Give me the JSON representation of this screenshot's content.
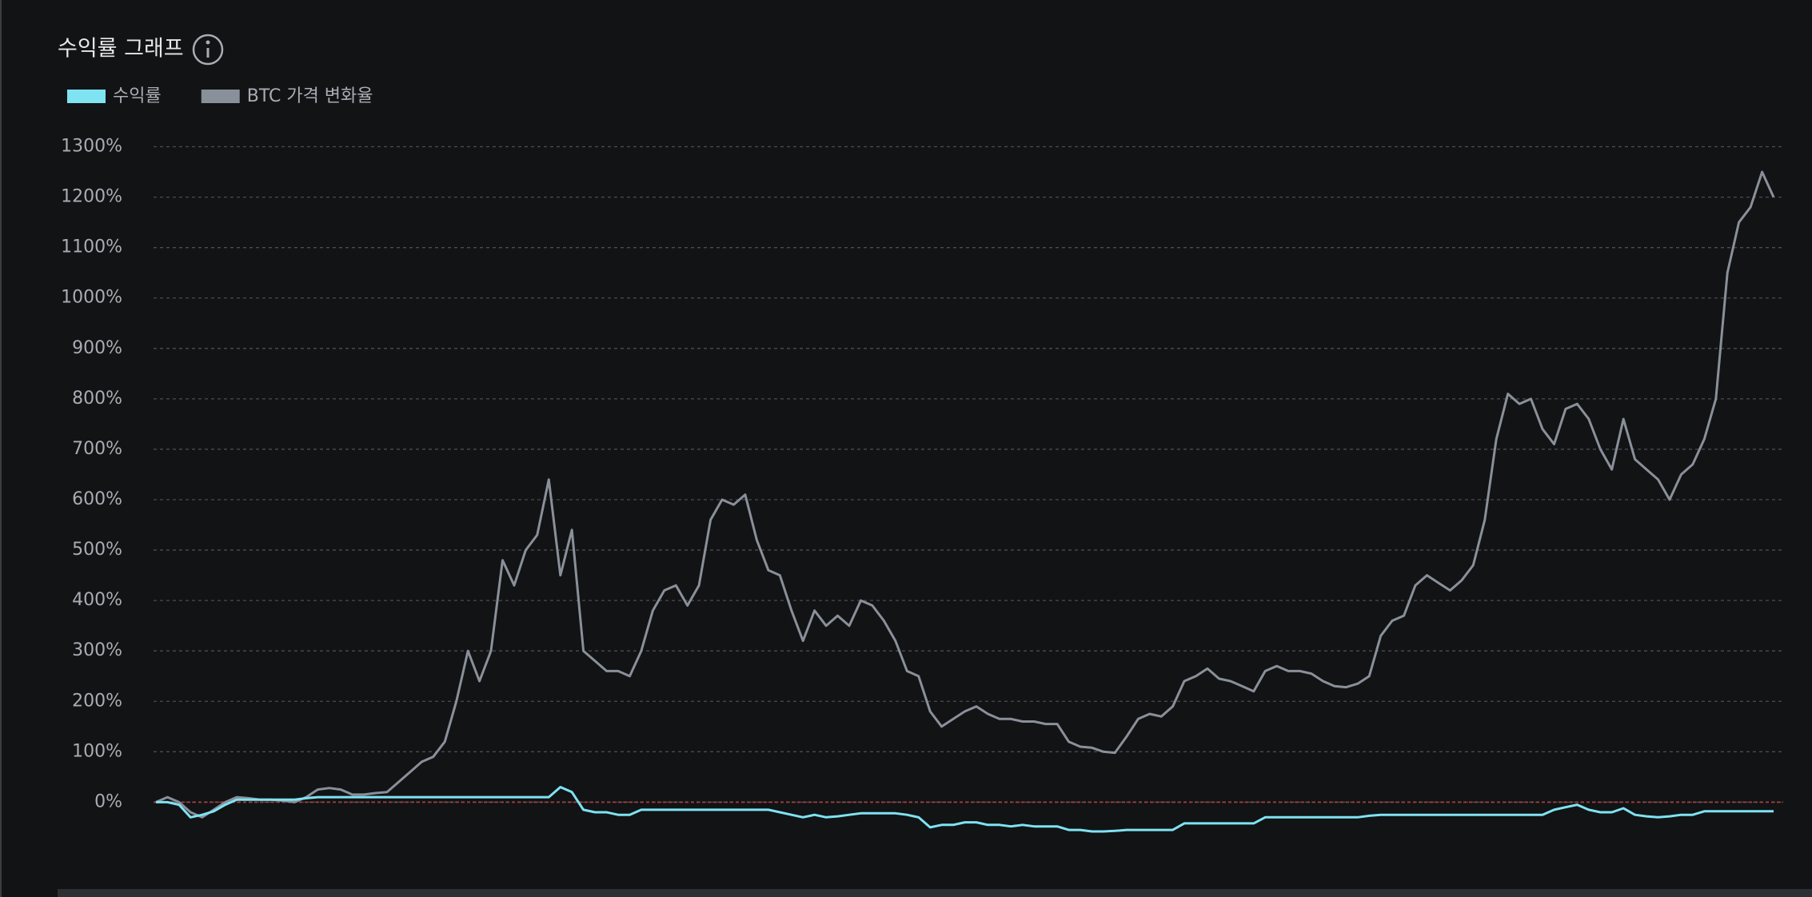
{
  "chart_data": {
    "type": "line",
    "title": "수익률 그래프",
    "ylim": [
      -150,
      1350
    ],
    "yticks": [
      {
        "value": 0,
        "label": "0%"
      },
      {
        "value": 100,
        "label": "100%"
      },
      {
        "value": 200,
        "label": "200%"
      },
      {
        "value": 300,
        "label": "300%"
      },
      {
        "value": 400,
        "label": "400%"
      },
      {
        "value": 500,
        "label": "500%"
      },
      {
        "value": 600,
        "label": "600%"
      },
      {
        "value": 700,
        "label": "700%"
      },
      {
        "value": 800,
        "label": "800%"
      },
      {
        "value": 900,
        "label": "900%"
      },
      {
        "value": 1000,
        "label": "1000%"
      },
      {
        "value": 1100,
        "label": "1100%"
      },
      {
        "value": 1200,
        "label": "1200%"
      },
      {
        "value": 1300,
        "label": "1300%"
      }
    ],
    "grid": true,
    "zero_line_color": "#9a3b3b",
    "legend": "top-left",
    "series": [
      {
        "name": "수익률",
        "color": "#7fe3f2",
        "values": [
          0,
          0,
          -5,
          -30,
          -25,
          -18,
          -5,
          5,
          5,
          5,
          5,
          5,
          5,
          8,
          10,
          10,
          10,
          10,
          10,
          10,
          10,
          10,
          10,
          10,
          10,
          10,
          10,
          10,
          10,
          10,
          10,
          10,
          10,
          10,
          10,
          30,
          20,
          -15,
          -20,
          -20,
          -25,
          -25,
          -15,
          -15,
          -15,
          -15,
          -15,
          -15,
          -15,
          -15,
          -15,
          -15,
          -15,
          -15,
          -20,
          -25,
          -30,
          -25,
          -30,
          -28,
          -25,
          -22,
          -22,
          -22,
          -22,
          -25,
          -30,
          -50,
          -45,
          -45,
          -40,
          -40,
          -45,
          -45,
          -48,
          -45,
          -48,
          -48,
          -48,
          -55,
          -55,
          -58,
          -58,
          -57,
          -55,
          -55,
          -55,
          -55,
          -55,
          -42,
          -42,
          -42,
          -42,
          -42,
          -42,
          -42,
          -30,
          -30,
          -30,
          -30,
          -30,
          -30,
          -30,
          -30,
          -30,
          -27,
          -25,
          -25,
          -25,
          -25,
          -25,
          -25,
          -25,
          -25,
          -25,
          -25,
          -25,
          -25,
          -25,
          -25,
          -25,
          -15,
          -10,
          -5,
          -15,
          -20,
          -20,
          -12,
          -25,
          -28,
          -30,
          -28,
          -25,
          -25,
          -18,
          -18,
          -18,
          -18,
          -18,
          -18,
          -18
        ]
      },
      {
        "name": "BTC 가격 변화율",
        "color": "#8a9099",
        "values": [
          0,
          10,
          0,
          -20,
          -30,
          -15,
          0,
          10,
          8,
          5,
          5,
          3,
          0,
          10,
          25,
          28,
          25,
          15,
          15,
          18,
          20,
          40,
          60,
          80,
          90,
          120,
          200,
          300,
          240,
          300,
          480,
          430,
          500,
          530,
          640,
          450,
          540,
          300,
          280,
          260,
          260,
          250,
          300,
          380,
          420,
          430,
          390,
          430,
          560,
          600,
          590,
          610,
          520,
          460,
          450,
          380,
          320,
          380,
          350,
          370,
          350,
          400,
          390,
          360,
          320,
          260,
          250,
          180,
          150,
          165,
          180,
          190,
          175,
          165,
          165,
          160,
          160,
          155,
          155,
          120,
          110,
          108,
          100,
          98,
          130,
          165,
          175,
          170,
          190,
          240,
          250,
          265,
          245,
          240,
          230,
          220,
          260,
          270,
          260,
          260,
          255,
          240,
          230,
          228,
          235,
          250,
          330,
          360,
          370,
          430,
          450,
          435,
          420,
          440,
          470,
          560,
          720,
          810,
          790,
          800,
          740,
          710,
          780,
          790,
          760,
          700,
          660,
          760,
          680,
          660,
          640,
          600,
          650,
          670,
          720,
          800,
          1050,
          1150,
          1180,
          1250,
          1200
        ]
      }
    ]
  }
}
